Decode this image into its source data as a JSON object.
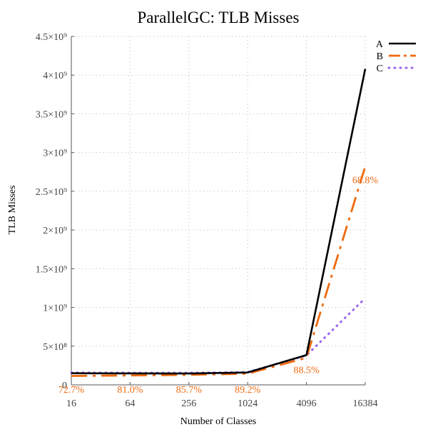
{
  "chart_data": {
    "type": "line",
    "title": "ParallelGC: TLB Misses",
    "xlabel": "Number of Classes",
    "ylabel": "TLB Misses",
    "categories": [
      "16",
      "64",
      "256",
      "1024",
      "4096",
      "16384"
    ],
    "ylim": [
      0,
      4500000000
    ],
    "yticks": [
      0,
      500000000,
      1000000000,
      1500000000,
      2000000000,
      2500000000,
      3000000000,
      3500000000,
      4000000000,
      4500000000
    ],
    "ytick_labels": [
      "0",
      "5×10⁸",
      "1×10⁹",
      "1.5×10⁹",
      "2×10⁹",
      "2.5×10⁹",
      "3×10⁹",
      "3.5×10⁹",
      "4×10⁹",
      "4.5×10⁹"
    ],
    "grid": true,
    "legend_position": "top-right",
    "series": [
      {
        "name": "A",
        "values": [
          150000000,
          148000000,
          147000000,
          160000000,
          385000000,
          4080000000
        ],
        "color": "#000000",
        "style": "solid"
      },
      {
        "name": "B",
        "values": [
          115000000,
          122000000,
          130000000,
          145000000,
          350000000,
          2820000000
        ],
        "color": "#ee6a10",
        "style": "dashdot"
      },
      {
        "name": "C",
        "values": [
          158000000,
          156000000,
          155000000,
          165000000,
          380000000,
          1120000000
        ],
        "color": "#9966ee",
        "style": "dotted"
      }
    ],
    "annotations": [
      {
        "text": "72.7%",
        "x": "16",
        "y": 0,
        "anchor": "below"
      },
      {
        "text": "81.0%",
        "x": "64",
        "y": 0,
        "anchor": "below"
      },
      {
        "text": "85.7%",
        "x": "256",
        "y": 0,
        "anchor": "below"
      },
      {
        "text": "89.2%",
        "x": "1024",
        "y": 0,
        "anchor": "below"
      },
      {
        "text": "88.5%",
        "x": "4096",
        "y": 200000000,
        "anchor": "center"
      },
      {
        "text": "68.8%",
        "x": "16384",
        "y": 2650000000,
        "anchor": "center"
      }
    ],
    "annotation_color": "#ee6a10"
  }
}
